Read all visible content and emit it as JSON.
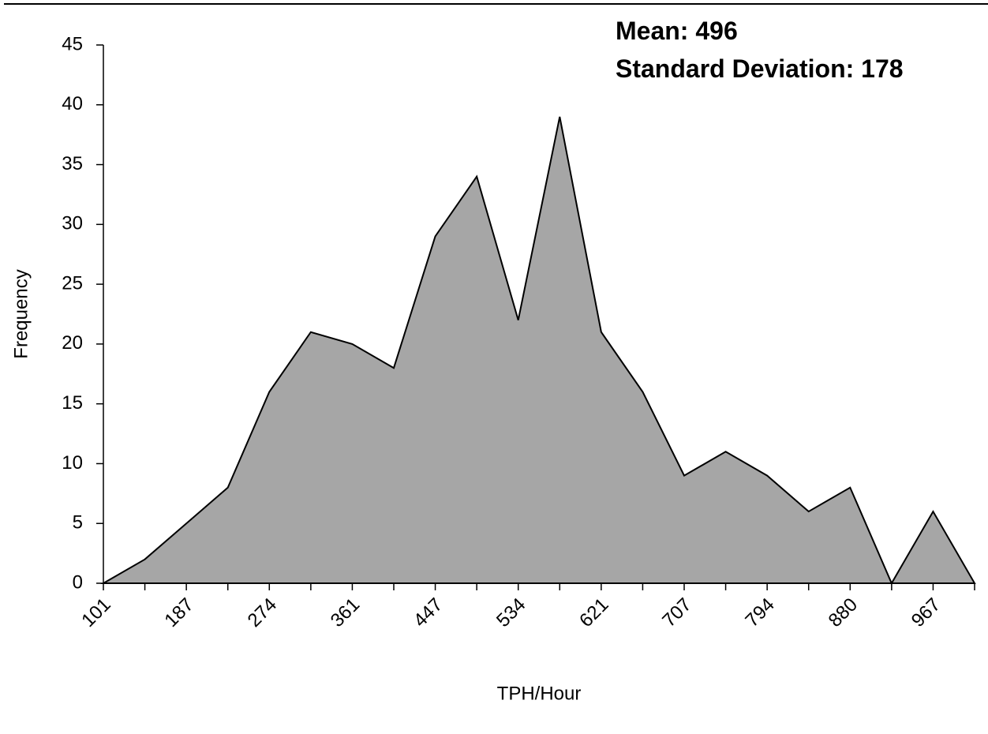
{
  "chart_data": {
    "type": "area",
    "annotations": [
      "Mean: 496",
      "Standard Deviation: 178"
    ],
    "y_label": "Frequency",
    "x_label": "TPH/Hour",
    "categories": [
      "101",
      null,
      "187",
      null,
      "274",
      null,
      "361",
      null,
      "447",
      null,
      "534",
      null,
      "621",
      null,
      "707",
      null,
      "794",
      null,
      "880",
      null,
      "967",
      null
    ],
    "values": [
      0,
      2,
      5,
      8,
      16,
      21,
      20,
      18,
      29,
      34,
      22,
      39,
      21,
      16,
      9,
      11,
      9,
      6,
      8,
      0,
      6,
      0
    ],
    "color": "#a6a6a6",
    "ylim": [
      0,
      45
    ],
    "yticks": [
      0,
      5,
      10,
      15,
      20,
      25,
      30,
      35,
      40,
      45
    ],
    "grid": false
  }
}
